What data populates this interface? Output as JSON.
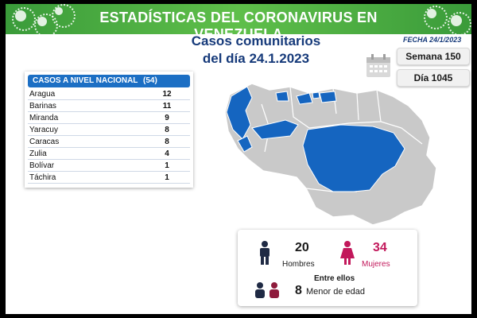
{
  "header": {
    "title": "ESTADÍSTICAS DEL CORONAVIRUS EN VENEZUELA"
  },
  "subtitle": {
    "line1": "Casos comunitarios",
    "line2": "del día 24.1.2023"
  },
  "fecha": "FECHA 24/1/2023",
  "badges": {
    "semana": "Semana 150",
    "dia": "Día 1045"
  },
  "table": {
    "title": "CASOS A NIVEL NACIONAL",
    "total": "(54)",
    "rows": [
      {
        "state": "Aragua",
        "value": "12"
      },
      {
        "state": "Barinas",
        "value": "11"
      },
      {
        "state": "Miranda",
        "value": "9"
      },
      {
        "state": "Yaracuy",
        "value": "8"
      },
      {
        "state": "Caracas",
        "value": "8"
      },
      {
        "state": "Zulia",
        "value": "4"
      },
      {
        "state": "Bolívar",
        "value": "1"
      },
      {
        "state": "Táchira",
        "value": "1"
      }
    ]
  },
  "stats": {
    "hombres_count": "20",
    "hombres_label": "Hombres",
    "mujeres_count": "34",
    "mujeres_label": "Mujeres",
    "entre_ellos": "Entre ellos",
    "menores_count": "8",
    "menores_label": "Menor de edad"
  },
  "colors": {
    "banner_green": "#4fb04a",
    "navy_text": "#163a7a",
    "table_header_blue": "#1c6fc4",
    "map_highlight": "#1565c0",
    "map_base": "#c9c9c9",
    "female_pink": "#c2185b"
  }
}
